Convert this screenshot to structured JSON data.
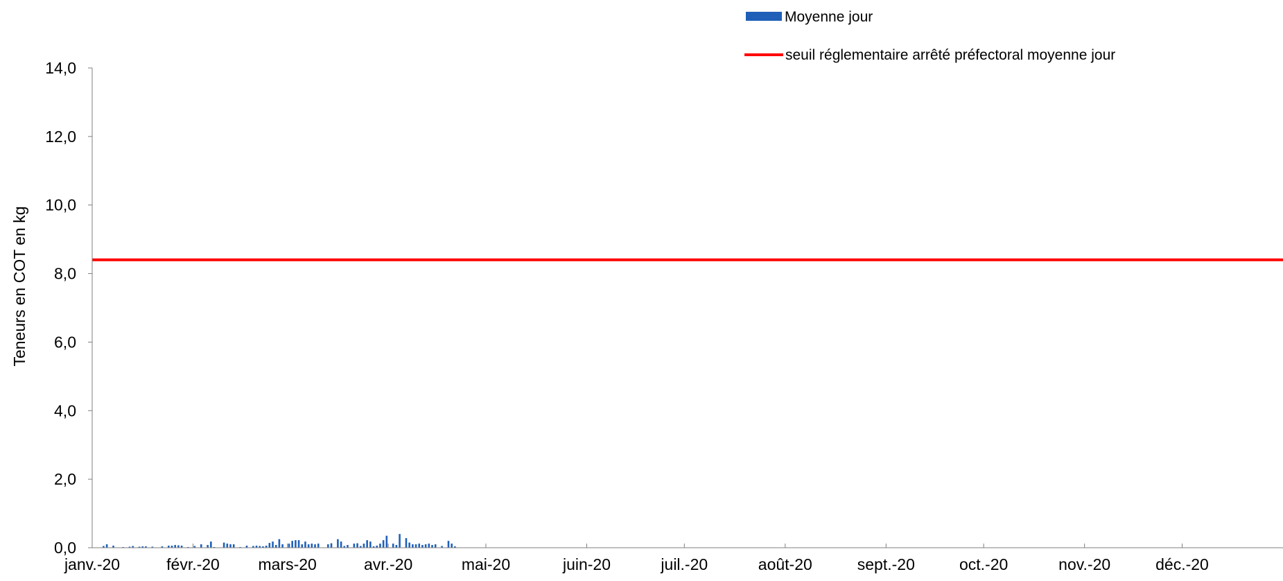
{
  "chart_data": {
    "type": "bar",
    "title": "",
    "xlabel": "",
    "ylabel": "Teneurs en COT en kg",
    "ylim": [
      0,
      14
    ],
    "yticks": [
      "0,0",
      "2,0",
      "4,0",
      "6,0",
      "8,0",
      "10,0",
      "12,0",
      "14,0"
    ],
    "xlim": [
      "2020-01-01",
      "2021-01-01"
    ],
    "xticks": [
      {
        "date": "2020-01-01",
        "label": "janv.-20"
      },
      {
        "date": "2020-02-01",
        "label": "févr.-20"
      },
      {
        "date": "2020-03-01",
        "label": "mars-20"
      },
      {
        "date": "2020-04-01",
        "label": "avr.-20"
      },
      {
        "date": "2020-05-01",
        "label": "mai-20"
      },
      {
        "date": "2020-06-01",
        "label": "juin-20"
      },
      {
        "date": "2020-07-01",
        "label": "juil.-20"
      },
      {
        "date": "2020-08-01",
        "label": "août-20"
      },
      {
        "date": "2020-09-01",
        "label": "sept.-20"
      },
      {
        "date": "2020-10-01",
        "label": "oct.-20"
      },
      {
        "date": "2020-11-01",
        "label": "nov.-20"
      },
      {
        "date": "2020-12-01",
        "label": "déc.-20"
      }
    ],
    "grid": false,
    "legend_position": "top-right",
    "series": [
      {
        "name": "Moyenne jour",
        "kind": "bar",
        "color": "#1F5FB8",
        "x": [
          "2020-01-04",
          "2020-01-05",
          "2020-01-07",
          "2020-01-10",
          "2020-01-12",
          "2020-01-13",
          "2020-01-15",
          "2020-01-16",
          "2020-01-17",
          "2020-01-19",
          "2020-01-22",
          "2020-01-24",
          "2020-01-25",
          "2020-01-26",
          "2020-01-27",
          "2020-01-28",
          "2020-01-30",
          "2020-02-01",
          "2020-02-03",
          "2020-02-05",
          "2020-02-06",
          "2020-02-07",
          "2020-02-10",
          "2020-02-11",
          "2020-02-12",
          "2020-02-13",
          "2020-02-15",
          "2020-02-17",
          "2020-02-19",
          "2020-02-20",
          "2020-02-21",
          "2020-02-22",
          "2020-02-23",
          "2020-02-24",
          "2020-02-25",
          "2020-02-26",
          "2020-02-27",
          "2020-02-28",
          "2020-03-01",
          "2020-03-02",
          "2020-03-03",
          "2020-03-04",
          "2020-03-05",
          "2020-03-06",
          "2020-03-07",
          "2020-03-08",
          "2020-03-09",
          "2020-03-10",
          "2020-03-13",
          "2020-03-14",
          "2020-03-16",
          "2020-03-17",
          "2020-03-18",
          "2020-03-19",
          "2020-03-21",
          "2020-03-22",
          "2020-03-23",
          "2020-03-24",
          "2020-03-25",
          "2020-03-26",
          "2020-03-27",
          "2020-03-28",
          "2020-03-29",
          "2020-03-30",
          "2020-03-31",
          "2020-04-02",
          "2020-04-03",
          "2020-04-04",
          "2020-04-06",
          "2020-04-07",
          "2020-04-08",
          "2020-04-09",
          "2020-04-10",
          "2020-04-11",
          "2020-04-12",
          "2020-04-13",
          "2020-04-14",
          "2020-04-15",
          "2020-04-17",
          "2020-04-19",
          "2020-04-20",
          "2020-04-21",
          "2020-04-24",
          "2020-04-25",
          "2020-04-26",
          "2020-04-27",
          "2020-04-28",
          "2020-04-29",
          "2020-04-30"
        ],
        "values": [
          0.05,
          0.1,
          0.06,
          0.02,
          0.03,
          0.05,
          0.03,
          0.04,
          0.04,
          0.03,
          0.04,
          0.06,
          0.06,
          0.08,
          0.07,
          0.06,
          0.02,
          0.05,
          0.1,
          0.08,
          0.18,
          0.02,
          0.15,
          0.12,
          0.1,
          0.1,
          0.02,
          0.06,
          0.05,
          0.06,
          0.05,
          0.04,
          0.06,
          0.14,
          0.18,
          0.08,
          0.25,
          0.1,
          0.12,
          0.2,
          0.22,
          0.22,
          0.1,
          0.18,
          0.1,
          0.12,
          0.1,
          0.12,
          0.1,
          0.13,
          0.25,
          0.18,
          0.05,
          0.08,
          0.12,
          0.13,
          0.05,
          0.12,
          0.22,
          0.18,
          0.04,
          0.06,
          0.12,
          0.22,
          0.35,
          0.12,
          0.08,
          0.4,
          0.28,
          0.15,
          0.1,
          0.1,
          0.12,
          0.08,
          0.1,
          0.12,
          0.08,
          0.1,
          0.05,
          0.2,
          0.12,
          0.04,
          0.01,
          0.01,
          0.01,
          0.01,
          0.01,
          0.01,
          0.01
        ]
      },
      {
        "name": "seuil réglementaire arrêté préfectoral moyenne jour",
        "kind": "line",
        "color": "#FF0000",
        "value": 8.4
      }
    ]
  }
}
